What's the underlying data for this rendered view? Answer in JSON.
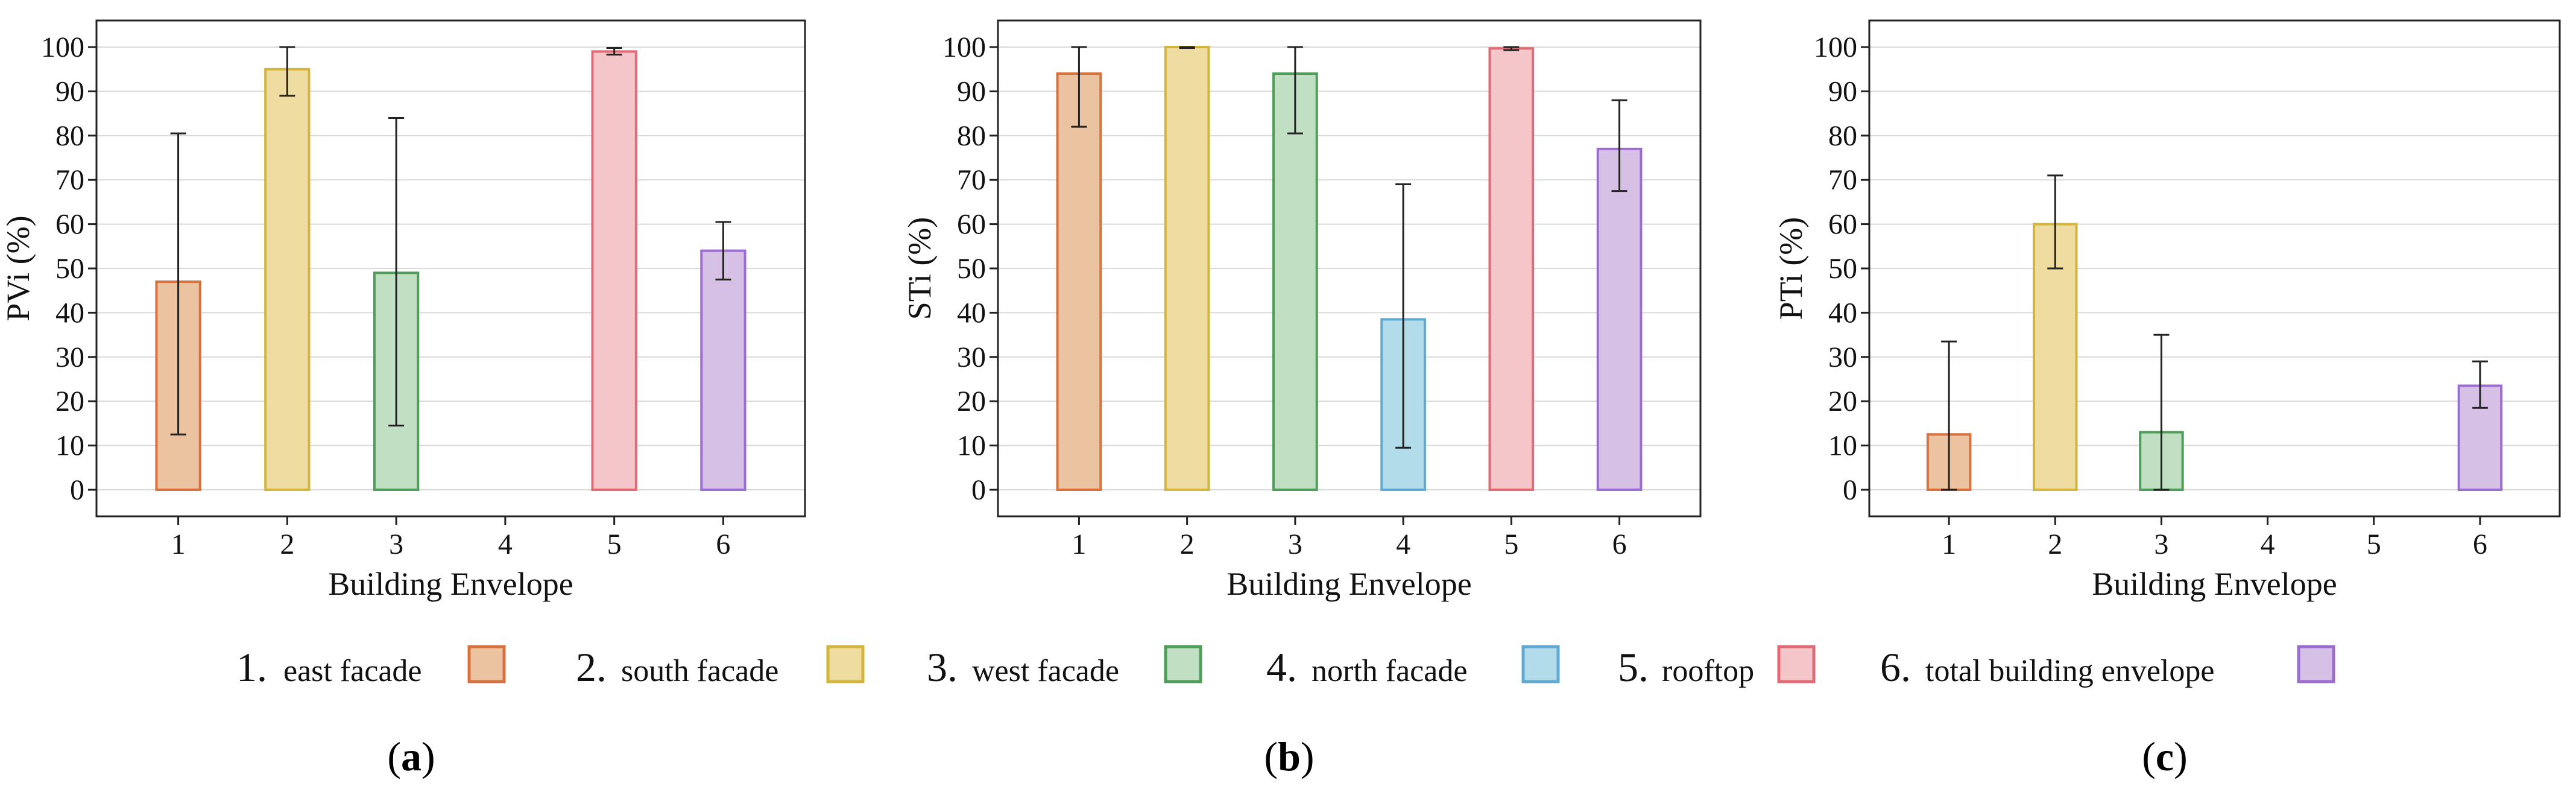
{
  "chart_data": [
    {
      "type": "bar",
      "panel": "a",
      "title": "",
      "xlabel": "Building Envelope",
      "ylabel": "PVi (%)",
      "categories": [
        "1",
        "2",
        "3",
        "4",
        "5",
        "6"
      ],
      "values": [
        47,
        95,
        49,
        null,
        99,
        54
      ],
      "error_low": [
        12.5,
        89,
        14.5,
        null,
        98.3,
        47.5
      ],
      "error_high": [
        80.5,
        100,
        84,
        null,
        99.8,
        60.5
      ],
      "ylim": [
        -6,
        106
      ],
      "yticks": [
        0,
        10,
        20,
        30,
        40,
        50,
        60,
        70,
        80,
        90,
        100
      ],
      "grid": true
    },
    {
      "type": "bar",
      "panel": "b",
      "title": "",
      "xlabel": "Building Envelope",
      "ylabel": "STi (%)",
      "categories": [
        "1",
        "2",
        "3",
        "4",
        "5",
        "6"
      ],
      "values": [
        94,
        100,
        94,
        38.5,
        99.7,
        77
      ],
      "error_low": [
        82,
        99.8,
        80.5,
        9.5,
        99.3,
        67.5
      ],
      "error_high": [
        100,
        100,
        100,
        69,
        100,
        88
      ],
      "ylim": [
        -6,
        106
      ],
      "yticks": [
        0,
        10,
        20,
        30,
        40,
        50,
        60,
        70,
        80,
        90,
        100
      ],
      "grid": true
    },
    {
      "type": "bar",
      "panel": "c",
      "title": "",
      "xlabel": "Building Envelope",
      "ylabel": "PTi (%)",
      "categories": [
        "1",
        "2",
        "3",
        "4",
        "5",
        "6"
      ],
      "values": [
        12.5,
        60,
        13,
        null,
        null,
        23.5
      ],
      "error_low": [
        0,
        50,
        0,
        null,
        null,
        18.5
      ],
      "error_high": [
        33.5,
        71,
        35,
        null,
        null,
        29
      ],
      "ylim": [
        -6,
        106
      ],
      "yticks": [
        0,
        10,
        20,
        30,
        40,
        50,
        60,
        70,
        80,
        90,
        100
      ],
      "grid": true
    }
  ],
  "legend": {
    "items": [
      {
        "num": "1.",
        "label": "east facade",
        "fill": "#EBC3A1",
        "stroke": "#D9713F"
      },
      {
        "num": "2.",
        "label": "south facade",
        "fill": "#EEDCA0",
        "stroke": "#D4B53C"
      },
      {
        "num": "3.",
        "label": "west facade",
        "fill": "#C1DFC2",
        "stroke": "#4E9E5A"
      },
      {
        "num": "4.",
        "label": "north facade",
        "fill": "#B3DCEB",
        "stroke": "#5FA9D3"
      },
      {
        "num": "5.",
        "label": "rooftop",
        "fill": "#F4C6CA",
        "stroke": "#E26A74"
      },
      {
        "num": "6.",
        "label": "total building envelope",
        "fill": "#D6C0E6",
        "stroke": "#9C6DD0"
      }
    ]
  },
  "panel_labels": [
    {
      "open": "(",
      "letter": "a",
      "close": ")"
    },
    {
      "open": "(",
      "letter": "b",
      "close": ")"
    },
    {
      "open": "(",
      "letter": "c",
      "close": ")"
    }
  ]
}
